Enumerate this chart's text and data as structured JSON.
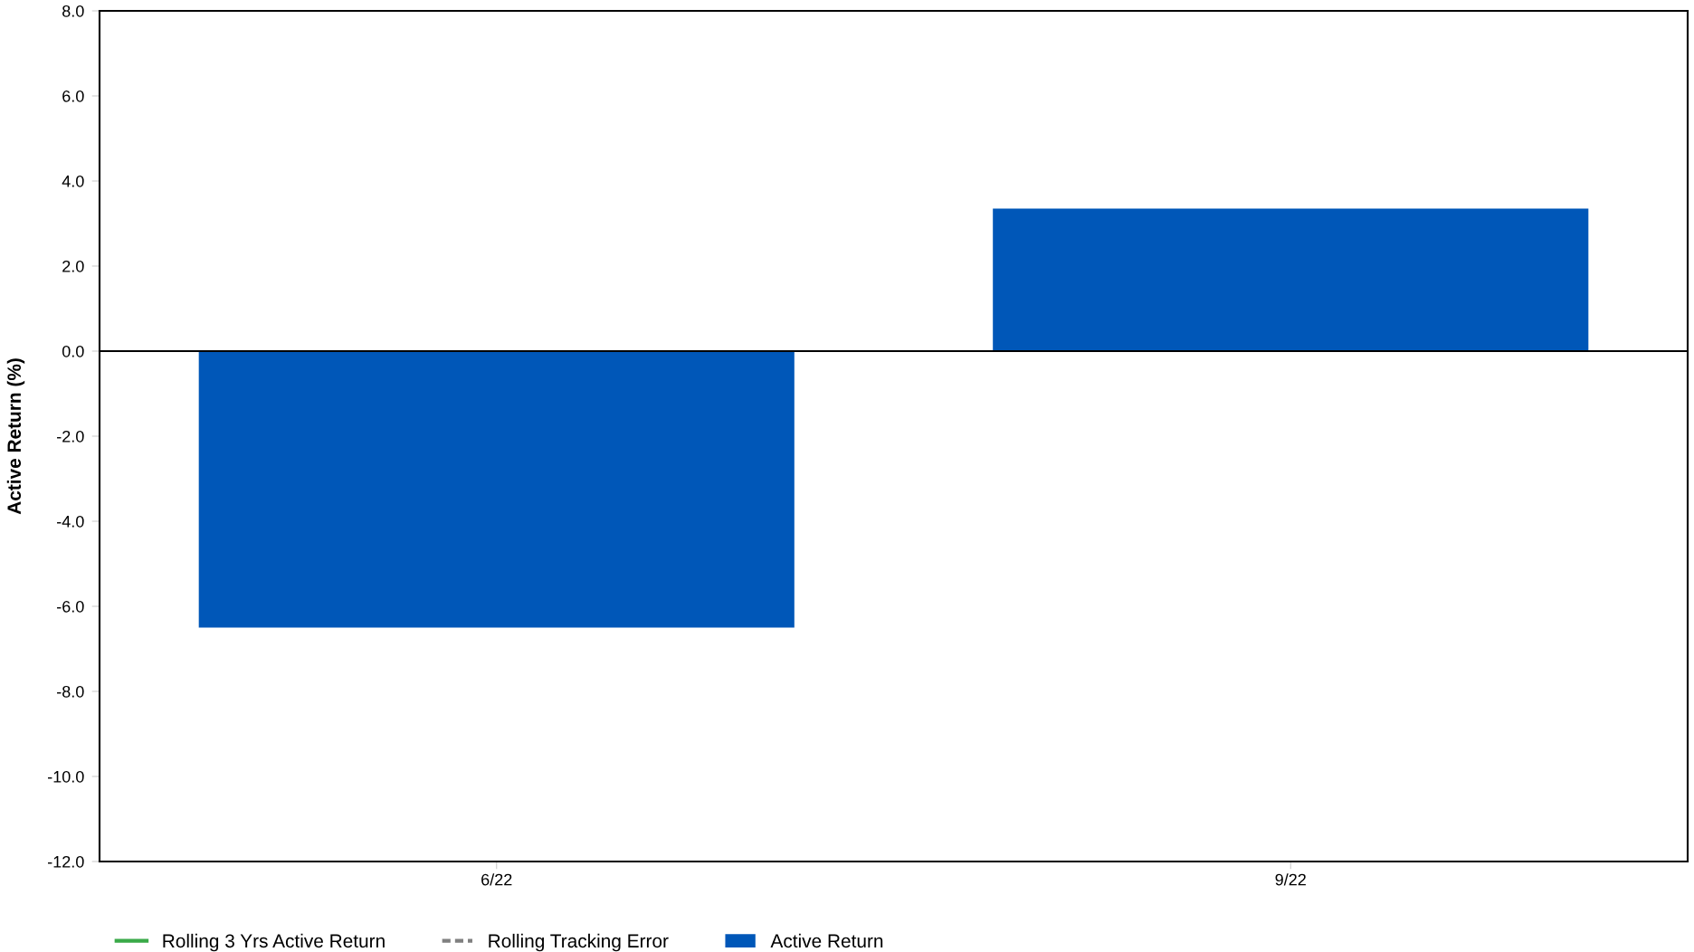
{
  "chart_data": {
    "type": "bar",
    "ylabel": "Active Return (%)",
    "categories": [
      "6/22",
      "9/22"
    ],
    "series": [
      {
        "name": "Rolling 3 Yrs Active Return",
        "type": "line",
        "color": "#3aaa49",
        "line_style": "solid",
        "values": [
          null,
          null
        ]
      },
      {
        "name": "Rolling Tracking Error",
        "type": "line",
        "color": "#808080",
        "line_style": "dashed",
        "values": [
          null,
          null
        ]
      },
      {
        "name": "Active Return",
        "color": "#0057b8",
        "values": [
          -6.5,
          3.35
        ]
      }
    ],
    "ylim": [
      -12,
      8
    ],
    "yticks": [
      {
        "value": -12,
        "label": "-12.0"
      },
      {
        "value": -10,
        "label": "-10.0"
      },
      {
        "value": -8,
        "label": "-8.0"
      },
      {
        "value": -6,
        "label": "-6.0"
      },
      {
        "value": -4,
        "label": "-4.0"
      },
      {
        "value": -2,
        "label": "-2.0"
      },
      {
        "value": 0,
        "label": "0.0"
      },
      {
        "value": 2,
        "label": "2.0"
      },
      {
        "value": 4,
        "label": "4.0"
      },
      {
        "value": 6,
        "label": "6.0"
      },
      {
        "value": 8,
        "label": "8.0"
      }
    ],
    "ref_lines": [
      {
        "axis": "y",
        "value": 0,
        "color": "#000000"
      }
    ],
    "grid": false,
    "legend": "bottom"
  }
}
